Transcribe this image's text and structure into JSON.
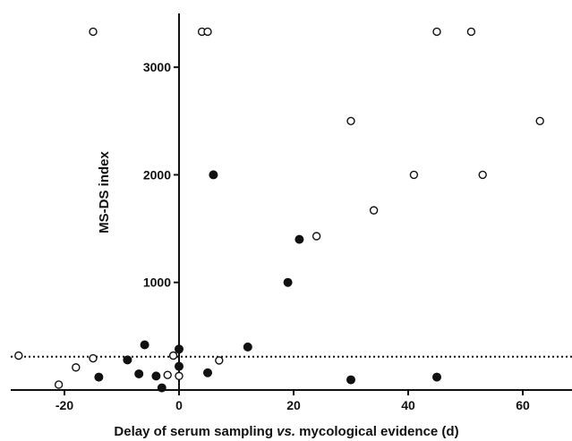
{
  "chart_data": {
    "type": "scatter",
    "title": "",
    "xlabel": "Delay of serum sampling vs. mycological evidence (d)",
    "xlabel_parts": [
      "Delay of serum sampling ",
      "vs.",
      " mycological evidence (d)"
    ],
    "ylabel": "MS-DS index",
    "xlim": [
      -30,
      70
    ],
    "ylim": [
      0,
      3500
    ],
    "x_ticks": [
      -20,
      0,
      20,
      40,
      60
    ],
    "x_tick_labels": [
      "-20",
      "0",
      "20",
      "40",
      "60"
    ],
    "y_ticks": [
      1000,
      2000,
      3000
    ],
    "y_tick_labels": [
      "1000",
      "2000",
      "3000"
    ],
    "threshold": 310,
    "grid": false,
    "series": [
      {
        "marker": "open-circle",
        "points": [
          [
            -28,
            320
          ],
          [
            -21,
            50
          ],
          [
            -18,
            210
          ],
          [
            -15,
            295
          ],
          [
            -15,
            3330
          ],
          [
            -2,
            140
          ],
          [
            -1,
            320
          ],
          [
            0,
            130
          ],
          [
            7,
            275
          ],
          [
            4,
            3330
          ],
          [
            5,
            3330
          ],
          [
            24,
            1430
          ],
          [
            30,
            2500
          ],
          [
            34,
            1670
          ],
          [
            41,
            2000
          ],
          [
            45,
            3330
          ],
          [
            51,
            3330
          ],
          [
            53,
            2000
          ],
          [
            63,
            2500
          ]
        ]
      },
      {
        "marker": "filled-circle",
        "points": [
          [
            -14,
            120
          ],
          [
            -9,
            280
          ],
          [
            -7,
            150
          ],
          [
            -6,
            420
          ],
          [
            -4,
            130
          ],
          [
            -3,
            20
          ],
          [
            0,
            220
          ],
          [
            0,
            380
          ],
          [
            5,
            160
          ],
          [
            6,
            2000
          ],
          [
            12,
            400
          ],
          [
            19,
            1000
          ],
          [
            21,
            1400
          ],
          [
            30,
            95
          ],
          [
            45,
            120
          ]
        ]
      }
    ]
  }
}
